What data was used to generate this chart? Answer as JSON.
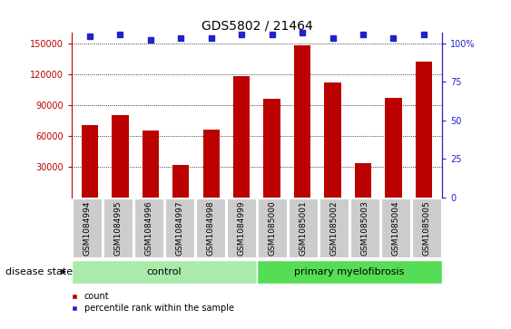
{
  "title": "GDS5802 / 21464",
  "samples": [
    "GSM1084994",
    "GSM1084995",
    "GSM1084996",
    "GSM1084997",
    "GSM1084998",
    "GSM1084999",
    "GSM1085000",
    "GSM1085001",
    "GSM1085002",
    "GSM1085003",
    "GSM1085004",
    "GSM1085005"
  ],
  "counts": [
    70000,
    80000,
    65000,
    32000,
    66000,
    118000,
    96000,
    148000,
    112000,
    33000,
    97000,
    132000
  ],
  "percentile_ranks": [
    98,
    99,
    96,
    97,
    97,
    99,
    99,
    100,
    97,
    99,
    97,
    99
  ],
  "control_count": 6,
  "disease_labels": [
    "control",
    "primary myelofibrosis"
  ],
  "disease_state_label": "disease state",
  "ylim_left": [
    0,
    160000
  ],
  "yticks_left": [
    30000,
    60000,
    90000,
    120000,
    150000
  ],
  "ylim_right": [
    0,
    106.67
  ],
  "yticks_right": [
    0,
    25,
    50,
    75,
    100
  ],
  "bar_color_red": "#BB0000",
  "dot_color_blue": "#2222CC",
  "control_bg_light": "#AAEAAA",
  "control_bg_dark": "#55DD55",
  "tick_label_bg": "#CCCCCC",
  "legend_count_label": "count",
  "legend_percentile_label": "percentile rank within the sample",
  "bar_width": 0.55,
  "title_fontsize": 10,
  "tick_fontsize": 7,
  "label_fontsize": 8,
  "axis_label_fontsize": 8
}
